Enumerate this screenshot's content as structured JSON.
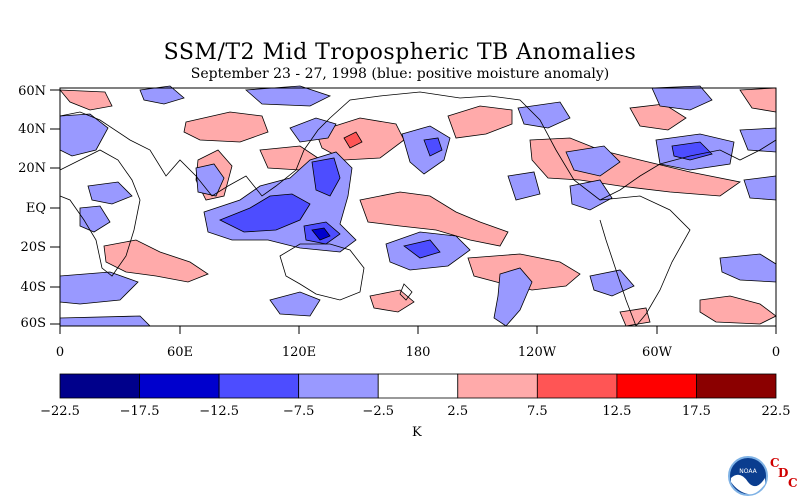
{
  "title": "SSM/T2 Mid Tropospheric TB Anomalies",
  "subtitle": "September 23 - 27, 1998 (blue: positive moisture anomaly)",
  "lat_labels": [
    "60N",
    "40N",
    "20N",
    "EQ",
    "20S",
    "40S",
    "60S"
  ],
  "lon_labels": [
    "0",
    "60E",
    "120E",
    "180",
    "120W",
    "60W",
    "0"
  ],
  "colorbar": {
    "colors": [
      "#00008b",
      "#0000cd",
      "#4d4dff",
      "#9999ff",
      "#ffffff",
      "#ffaaaa",
      "#ff5555",
      "#ff0000",
      "#8b0000"
    ],
    "ticks": [
      "-22.5",
      "-17.5",
      "-12.5",
      "-7.5",
      "-2.5",
      "2.5",
      "7.5",
      "12.5",
      "17.5",
      "22.5"
    ],
    "unit": "K"
  },
  "logo": {
    "agency": "NOAA",
    "letters": [
      "C",
      "D",
      "C"
    ]
  }
}
